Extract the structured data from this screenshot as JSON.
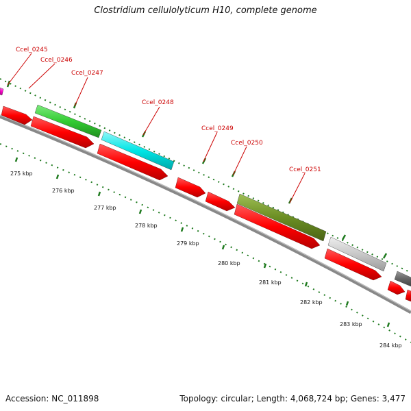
{
  "header": {
    "title": "Clostridium cellulolyticum H10, complete genome"
  },
  "footer": {
    "accession": "Accession: NC_011898",
    "topology": "Topology: circular; Length: 4,068,724 bp; Genes: 3,477"
  },
  "kbp_labels": [
    "275 kbp",
    "276 kbp",
    "277 kbp",
    "278 kbp",
    "279 kbp",
    "280 kbp",
    "281 kbp",
    "282 kbp",
    "283 kbp",
    "284 kbp"
  ],
  "gene_labels": [
    "Ccel_0245",
    "Ccel_0246",
    "Ccel_0247",
    "Ccel_0248",
    "Ccel_0249",
    "Ccel_0250",
    "Ccel_0251"
  ],
  "colors": {
    "cds": "#ff0000",
    "green": "#33cc33",
    "cyan": "#00e5e5",
    "olive": "#6b8e23",
    "silver": "#c8c8c8",
    "darkgray": "#666666",
    "magenta": "#ff00cc",
    "backbone": "#888888",
    "ticks": "#1e7a1e",
    "labels": "#cc0000"
  }
}
